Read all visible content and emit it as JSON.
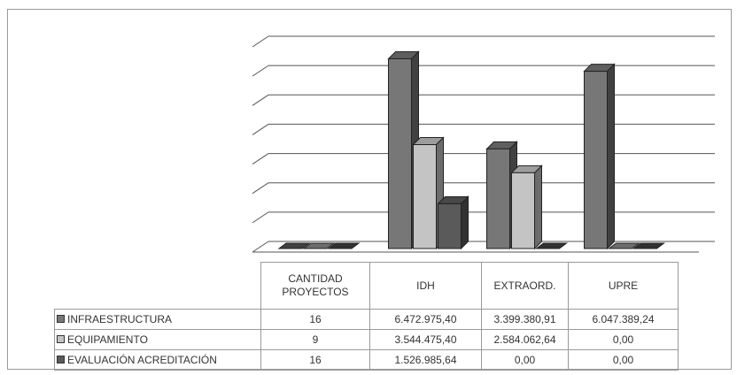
{
  "colors": {
    "infraestructura": "#777777",
    "equipamiento": "#c4c4c4",
    "evaluacion": "#5a5a5a",
    "grid": "#555555",
    "background": "#ffffff"
  },
  "chart_data": {
    "type": "bar",
    "title": "",
    "xlabel": "",
    "ylabel": "",
    "categories": [
      "CANTIDAD PROYECTOS",
      "IDH",
      "EXTRAORD.",
      "UPRE"
    ],
    "series": [
      {
        "name": "INFRAESTRUCTURA",
        "values": [
          16,
          6472975.4,
          3399380.91,
          6047389.24
        ]
      },
      {
        "name": "EQUIPAMIENTO",
        "values": [
          9,
          3544475.4,
          2584062.64,
          0
        ]
      },
      {
        "name": "EVALUACIÓN ACREDITACIÓN",
        "values": [
          16,
          1526985.64,
          0,
          0
        ]
      }
    ],
    "ylim": [
      0,
      7000000
    ],
    "grid": true,
    "legend": "table-left",
    "projection": "3d-clustered-column",
    "table": {
      "headers": [
        "CANTIDAD\nPROYECTOS",
        "IDH",
        "EXTRAORD.",
        "UPRE"
      ],
      "rows": [
        {
          "label": "INFRAESTRUCTURA",
          "cells": [
            "16",
            "6.472.975,40",
            "3.399.380,91",
            "6.047.389,24"
          ]
        },
        {
          "label": "EQUIPAMIENTO",
          "cells": [
            "9",
            "3.544.475,40",
            "2.584.062,64",
            "0,00"
          ]
        },
        {
          "label": "EVALUACIÓN ACREDITACIÓN",
          "cells": [
            "16",
            "1.526.985,64",
            "0,00",
            "0,00"
          ]
        }
      ]
    }
  }
}
